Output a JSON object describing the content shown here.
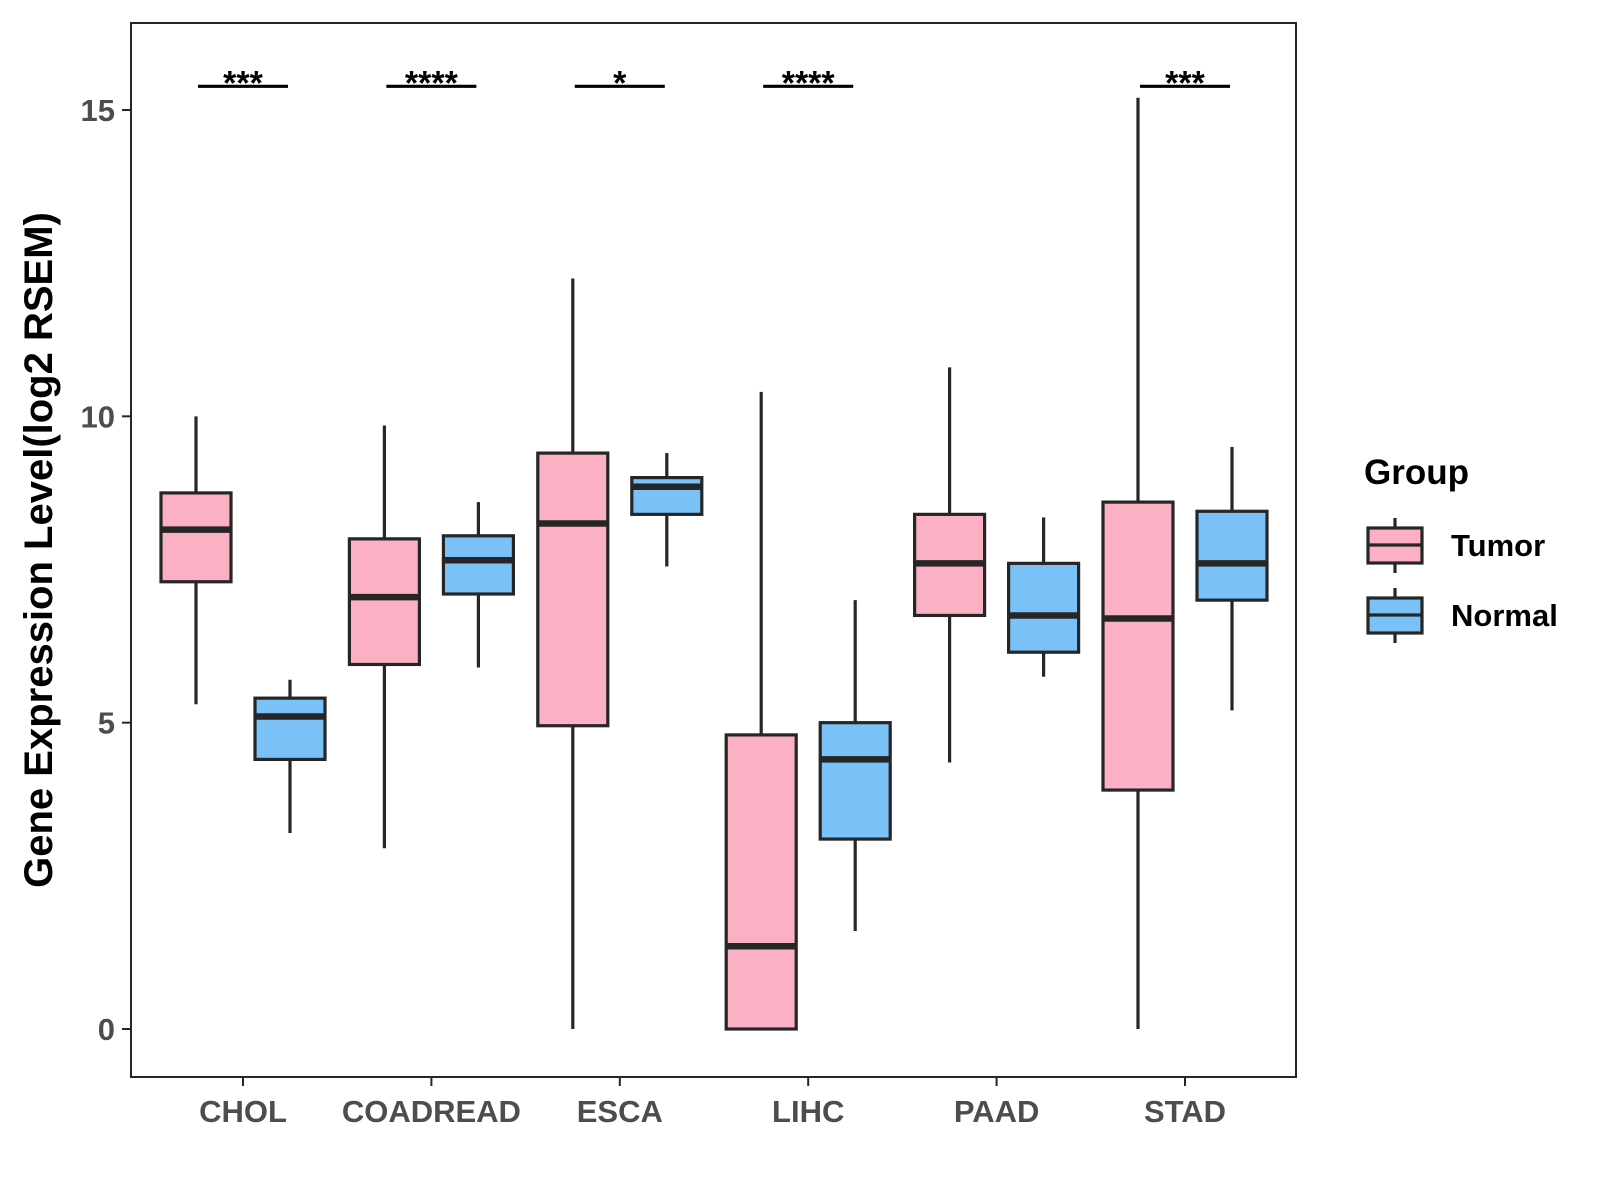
{
  "chart_data": {
    "type": "boxplot",
    "ylabel": "Gene Expression Level(log2 RSEM)",
    "xlabel": "",
    "ylim": [
      -0.75,
      16.4
    ],
    "yticks": [
      0,
      5,
      10,
      15
    ],
    "ytick_labels": [
      "0",
      "5",
      "10",
      "15"
    ],
    "grid": false,
    "legend_position": "right",
    "legend": {
      "title": "Group",
      "entries": [
        {
          "name": "Tumor",
          "color": "#FBB1C3"
        },
        {
          "name": "Normal",
          "color": "#79C1F7"
        }
      ]
    },
    "categories": [
      "CHOL",
      "COADREAD",
      "ESCA",
      "LIHC",
      "PAAD",
      "STAD"
    ],
    "series": [
      {
        "name": "Tumor",
        "color": "#FBB1C3",
        "boxes": [
          {
            "whisker_low": 5.3,
            "q1": 7.3,
            "median": 8.15,
            "q3": 8.75,
            "whisker_high": 10.0
          },
          {
            "whisker_low": 2.95,
            "q1": 5.95,
            "median": 7.05,
            "q3": 8.0,
            "whisker_high": 9.85
          },
          {
            "whisker_low": 0.0,
            "q1": 4.95,
            "median": 8.25,
            "q3": 9.4,
            "whisker_high": 12.25
          },
          {
            "whisker_low": 0.0,
            "q1": 0.0,
            "median": 1.35,
            "q3": 4.8,
            "whisker_high": 10.4
          },
          {
            "whisker_low": 4.35,
            "q1": 6.75,
            "median": 7.6,
            "q3": 8.4,
            "whisker_high": 10.8
          },
          {
            "whisker_low": 0.0,
            "q1": 3.9,
            "median": 6.7,
            "q3": 8.6,
            "whisker_high": 15.2
          }
        ]
      },
      {
        "name": "Normal",
        "color": "#79C1F7",
        "boxes": [
          {
            "whisker_low": 3.2,
            "q1": 4.4,
            "median": 5.1,
            "q3": 5.4,
            "whisker_high": 5.7
          },
          {
            "whisker_low": 5.9,
            "q1": 7.1,
            "median": 7.65,
            "q3": 8.05,
            "whisker_high": 8.6
          },
          {
            "whisker_low": 7.55,
            "q1": 8.4,
            "median": 8.85,
            "q3": 9.0,
            "whisker_high": 9.4
          },
          {
            "whisker_low": 1.6,
            "q1": 3.1,
            "median": 4.4,
            "q3": 5.0,
            "whisker_high": 7.0
          },
          {
            "whisker_low": 5.75,
            "q1": 6.15,
            "median": 6.75,
            "q3": 7.6,
            "whisker_high": 8.35
          },
          {
            "whisker_low": 5.2,
            "q1": 7.0,
            "median": 7.6,
            "q3": 8.45,
            "whisker_high": 9.5
          }
        ]
      }
    ],
    "significance": [
      "***",
      "****",
      "*",
      "****",
      "",
      "***"
    ],
    "significance_y": 15.55
  },
  "colors": {
    "outline": "#262626",
    "axis_text": "#4d4d4d",
    "panel_border": "#262626"
  }
}
